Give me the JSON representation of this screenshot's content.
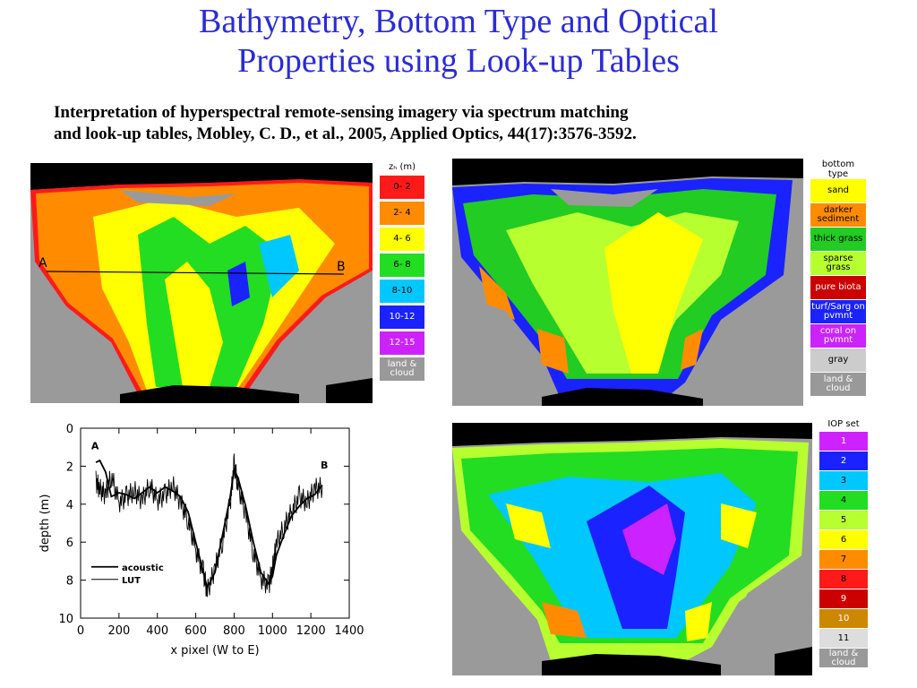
{
  "title": {
    "line1": "Bathymetry, Bottom Type and Optical",
    "line2": "Properties using Look-up Tables"
  },
  "citation": {
    "line1": "Interpretation of hyperspectral remote-sensing imagery via spectrum matching",
    "line2": "and look-up tables, Mobley, C. D., et al., 2005, Applied Optics, 44(17):3576-3592."
  },
  "depth_map": {
    "point_a": "A",
    "point_b": "B",
    "legend_title": "zₕ (m)",
    "legend": [
      {
        "label": "0- 2",
        "color": "#ff1a1a",
        "text_color": "#000000"
      },
      {
        "label": "2- 4",
        "color": "#ff8c00",
        "text_color": "#000000"
      },
      {
        "label": "4- 6",
        "color": "#ffff00",
        "text_color": "#000000"
      },
      {
        "label": "6- 8",
        "color": "#22dd22",
        "text_color": "#000000"
      },
      {
        "label": "8-10",
        "color": "#00c8ff",
        "text_color": "#000000"
      },
      {
        "label": "10-12",
        "color": "#1a22ff",
        "text_color": "#ffffff"
      },
      {
        "label": "12-15",
        "color": "#cc22ff",
        "text_color": "#ffffff"
      },
      {
        "label": "land & cloud",
        "color": "#999999",
        "text_color": "#ffffff"
      }
    ]
  },
  "bottom_type_map": {
    "legend_title": "bottom type",
    "legend": [
      {
        "label": "sand",
        "color": "#ffff00",
        "text_color": "#000000"
      },
      {
        "label": "darker sediment",
        "color": "#ff8c00",
        "text_color": "#000000"
      },
      {
        "label": "thick grass",
        "color": "#22cc22",
        "text_color": "#000000"
      },
      {
        "label": "sparse grass",
        "color": "#b8ff30",
        "text_color": "#000000"
      },
      {
        "label": "pure biota",
        "color": "#cc0000",
        "text_color": "#ffffff"
      },
      {
        "label": "turf/Sarg on pvmnt",
        "color": "#1a22ff",
        "text_color": "#ffffff"
      },
      {
        "label": "coral on pvmnt",
        "color": "#cc22ff",
        "text_color": "#ffffff"
      },
      {
        "label": "gray",
        "color": "#cccccc",
        "text_color": "#000000"
      },
      {
        "label": "land & cloud",
        "color": "#999999",
        "text_color": "#ffffff"
      }
    ]
  },
  "iop_map": {
    "legend_title": "IOP set",
    "legend": [
      {
        "label": "1",
        "color": "#cc22ff",
        "text_color": "#ffffff"
      },
      {
        "label": "2",
        "color": "#1a22ff",
        "text_color": "#ffffff"
      },
      {
        "label": "3",
        "color": "#00c8ff",
        "text_color": "#000000"
      },
      {
        "label": "4",
        "color": "#22dd22",
        "text_color": "#000000"
      },
      {
        "label": "5",
        "color": "#b8ff30",
        "text_color": "#000000"
      },
      {
        "label": "6",
        "color": "#ffff00",
        "text_color": "#000000"
      },
      {
        "label": "7",
        "color": "#ff8c00",
        "text_color": "#000000"
      },
      {
        "label": "8",
        "color": "#ff1a1a",
        "text_color": "#000000"
      },
      {
        "label": "9",
        "color": "#cc0000",
        "text_color": "#ffffff"
      },
      {
        "label": "10",
        "color": "#cc8800",
        "text_color": "#ffffff"
      },
      {
        "label": "11",
        "color": "#dddddd",
        "text_color": "#000000"
      },
      {
        "label": "land & cloud",
        "color": "#999999",
        "text_color": "#ffffff"
      }
    ]
  },
  "chart_data": {
    "type": "line",
    "title": "",
    "xlabel": "x pixel (W to E)",
    "ylabel": "depth (m)",
    "xlim": [
      0,
      1400
    ],
    "ylim": [
      10,
      0
    ],
    "y_inverted": true,
    "xticks": [
      "0",
      "200",
      "400",
      "600",
      "800",
      "1000",
      "1200",
      "1400"
    ],
    "yticks": [
      "0",
      "2",
      "4",
      "6",
      "8",
      "10"
    ],
    "grid": false,
    "legend_position": "bottom-left",
    "annotations": [
      {
        "text": "A",
        "x": 75,
        "y": 1.3
      },
      {
        "text": "B",
        "x": 1270,
        "y": 2.3
      }
    ],
    "series": [
      {
        "name": "acoustic",
        "style": "thick",
        "x": [
          80,
          100,
          130,
          160,
          200,
          240,
          280,
          320,
          360,
          400,
          440,
          480,
          520,
          560,
          600,
          640,
          660,
          700,
          740,
          780,
          800,
          820,
          860,
          900,
          940,
          980,
          1000,
          1020,
          1060,
          1100,
          1140,
          1180,
          1220,
          1260
        ],
        "y": [
          1.8,
          1.7,
          2.3,
          3.6,
          3.4,
          3.5,
          3.7,
          3.4,
          3.1,
          3.4,
          3.1,
          3.3,
          3.6,
          4.4,
          6.0,
          7.6,
          8.4,
          7.6,
          5.6,
          3.6,
          2.2,
          2.6,
          4.1,
          6.0,
          7.6,
          8.2,
          7.8,
          6.7,
          5.6,
          4.6,
          4.1,
          3.7,
          3.5,
          3.0
        ]
      },
      {
        "name": "LUT",
        "style": "noisy",
        "x": [
          80,
          100,
          130,
          160,
          200,
          240,
          280,
          320,
          360,
          400,
          440,
          480,
          520,
          560,
          600,
          640,
          660,
          700,
          740,
          780,
          800,
          820,
          860,
          900,
          940,
          980,
          1000,
          1020,
          1060,
          1100,
          1140,
          1180,
          1220,
          1260
        ],
        "y": [
          2.8,
          3.2,
          3.5,
          2.5,
          3.9,
          3.6,
          3.3,
          3.8,
          3.0,
          3.8,
          3.5,
          3.0,
          3.9,
          4.8,
          6.4,
          7.6,
          8.6,
          7.4,
          5.9,
          3.9,
          1.9,
          3.0,
          4.5,
          6.5,
          7.9,
          8.3,
          7.4,
          6.1,
          5.2,
          4.4,
          3.6,
          3.9,
          3.2,
          3.1
        ]
      }
    ]
  }
}
